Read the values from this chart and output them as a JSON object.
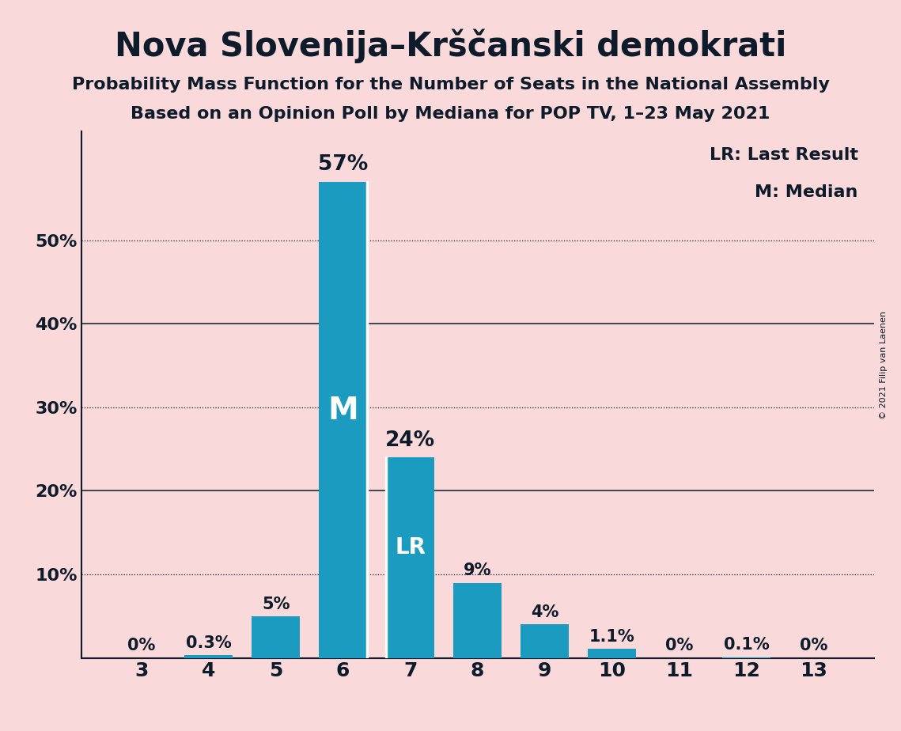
{
  "title": "Nova Slovenija–Krščanski demokrati",
  "subtitle1": "Probability Mass Function for the Number of Seats in the National Assembly",
  "subtitle2": "Based on an Opinion Poll by Mediana for POP TV, 1–23 May 2021",
  "copyright": "© 2021 Filip van Laenen",
  "categories": [
    3,
    4,
    5,
    6,
    7,
    8,
    9,
    10,
    11,
    12,
    13
  ],
  "values": [
    0.0,
    0.3,
    5.0,
    57.0,
    24.0,
    9.0,
    4.0,
    1.1,
    0.0,
    0.1,
    0.0
  ],
  "labels": [
    "0%",
    "0.3%",
    "5%",
    "57%",
    "24%",
    "9%",
    "4%",
    "1.1%",
    "0%",
    "0.1%",
    "0%"
  ],
  "bar_color": "#1a9bbf",
  "background_color": "#f9d9d9",
  "text_color": "#0d1b2a",
  "median_bar": 6,
  "lr_bar": 7,
  "legend_lr": "LR: Last Result",
  "legend_m": "M: Median",
  "yticks": [
    0,
    10,
    20,
    30,
    40,
    50,
    60
  ],
  "ytick_labels": [
    "",
    "10%",
    "20%",
    "30%",
    "40%",
    "50%",
    ""
  ],
  "dotted_lines": [
    10,
    30,
    50
  ],
  "solid_lines": [
    20,
    40
  ],
  "ylim": [
    0,
    63
  ]
}
